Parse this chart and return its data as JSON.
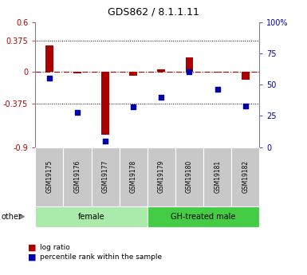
{
  "title": "GDS862 / 8.1.1.11",
  "samples": [
    "GSM19175",
    "GSM19176",
    "GSM19177",
    "GSM19178",
    "GSM19179",
    "GSM19180",
    "GSM19181",
    "GSM19182"
  ],
  "log_ratio": [
    0.32,
    -0.02,
    -0.75,
    -0.04,
    0.03,
    0.18,
    -0.01,
    -0.09
  ],
  "percentile_rank": [
    55,
    28,
    5,
    32,
    40,
    60,
    46,
    33
  ],
  "groups": [
    {
      "label": "female",
      "count": 4,
      "color": "#AAEAAA"
    },
    {
      "label": "GH-treated male",
      "count": 4,
      "color": "#44CC44"
    }
  ],
  "ylim_left": [
    -0.9,
    0.6
  ],
  "ylim_right": [
    0,
    100
  ],
  "yticks_left": [
    -0.9,
    -0.375,
    0,
    0.375,
    0.6
  ],
  "yticks_right": [
    0,
    25,
    50,
    75,
    100
  ],
  "ytick_labels_left": [
    "-0.9",
    "-0.375",
    "0",
    "0.375",
    "0.6"
  ],
  "ytick_labels_right": [
    "0",
    "25",
    "50",
    "75",
    "100%"
  ],
  "hlines": [
    0.375,
    -0.375
  ],
  "bar_color_red": "#AA0000",
  "bar_color_blue": "#0000AA",
  "zero_line_color": "#AA0000",
  "legend_labels": [
    "log ratio",
    "percentile rank within the sample"
  ],
  "other_label": "other",
  "bg_color": "#FFFFFF",
  "sample_box_color": "#C8C8C8",
  "title_fontsize": 9,
  "tick_fontsize": 7,
  "label_fontsize": 7
}
